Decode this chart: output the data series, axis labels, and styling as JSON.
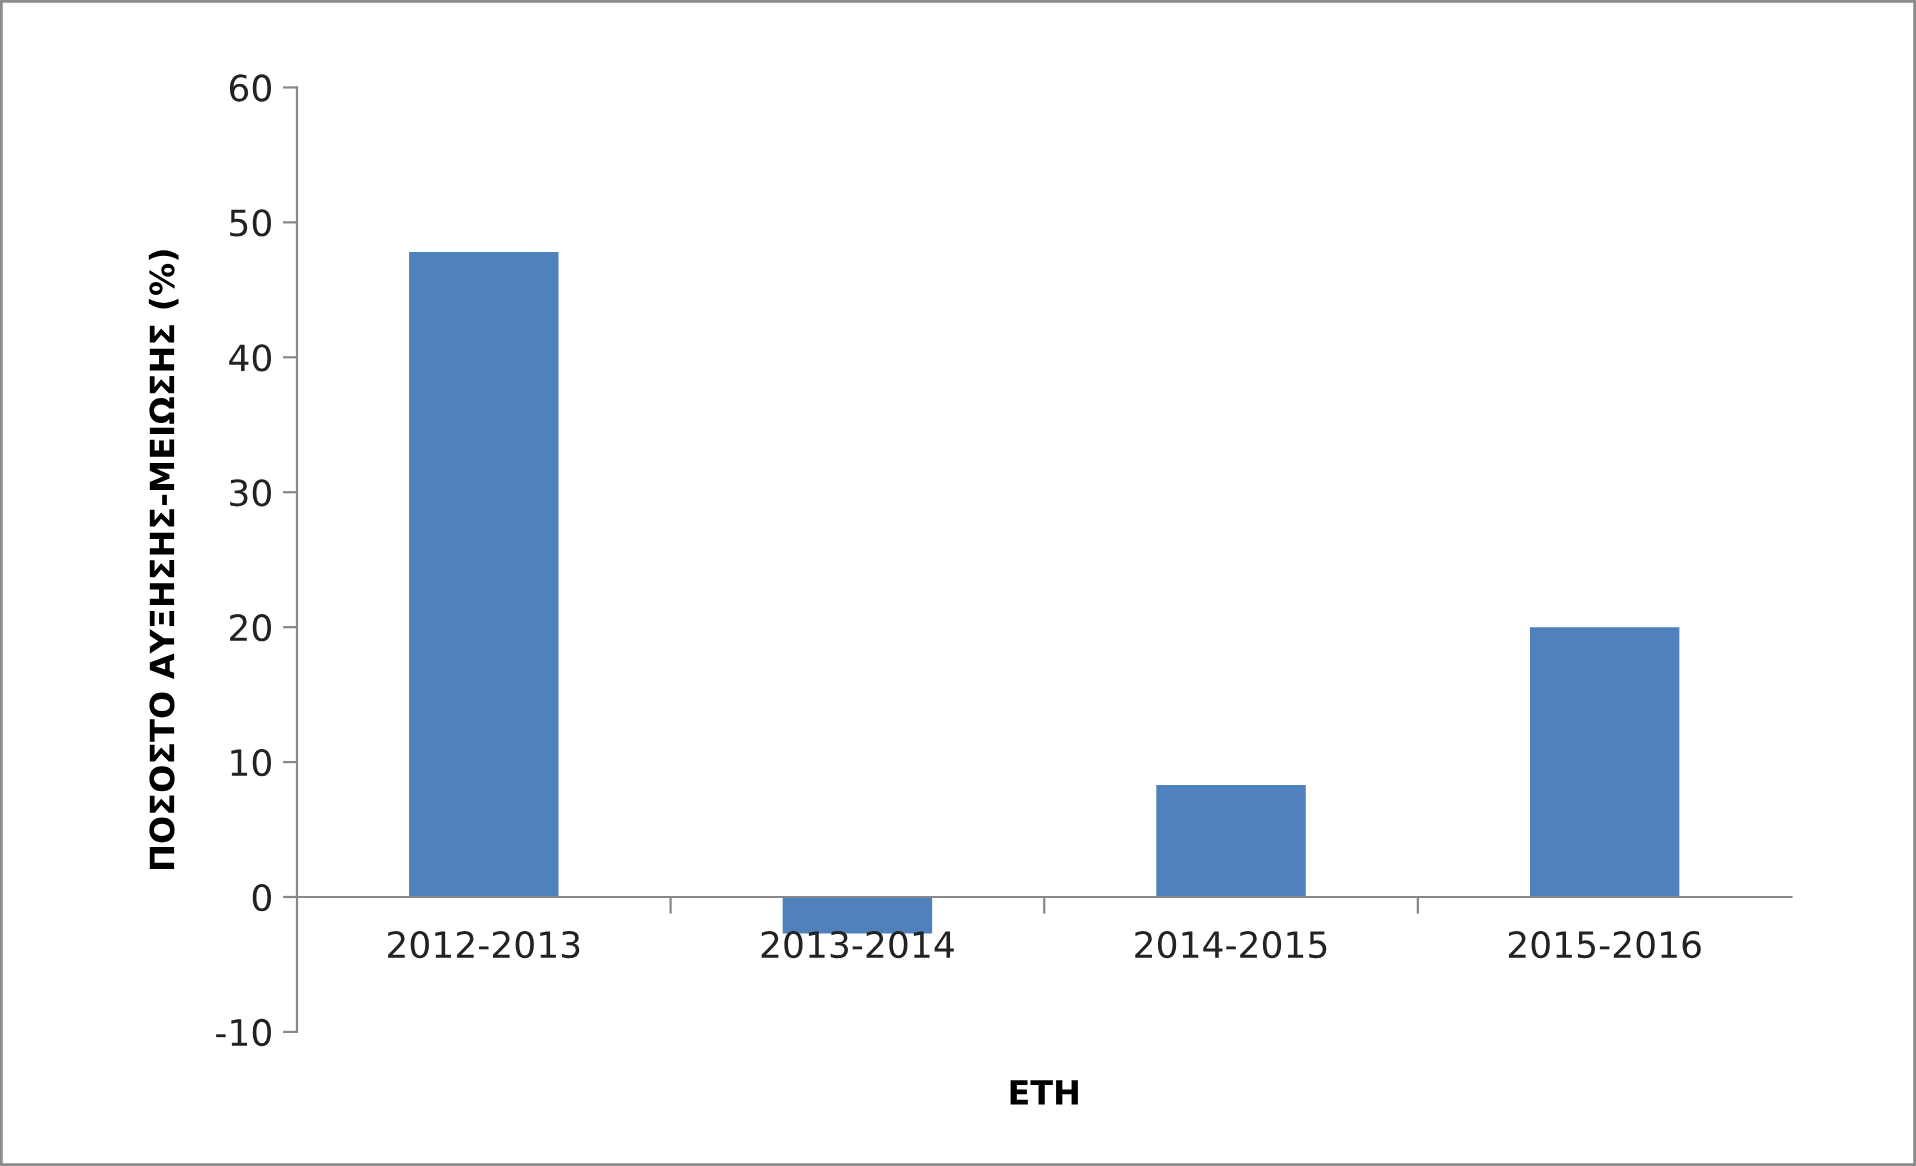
{
  "chart_data": {
    "type": "bar",
    "xlabel": "ΕΤΗ",
    "ylabel": "ΠΟΣΟΣΤΟ ΑΥΞΗΣΗΣ-ΜΕΙΩΣΗΣ (%)",
    "categories": [
      "2012-2013",
      "2013-2014",
      "2014-2015",
      "2015-2016"
    ],
    "values": [
      47.8,
      -2.7,
      8.3,
      20.0
    ],
    "color": "#4f81bd",
    "ylim": [
      -10,
      60
    ],
    "yticks": [
      {
        "value": -10,
        "label": "-10"
      },
      0,
      10,
      20,
      30,
      40,
      50,
      60
    ],
    "grid": false,
    "legend": false
  }
}
